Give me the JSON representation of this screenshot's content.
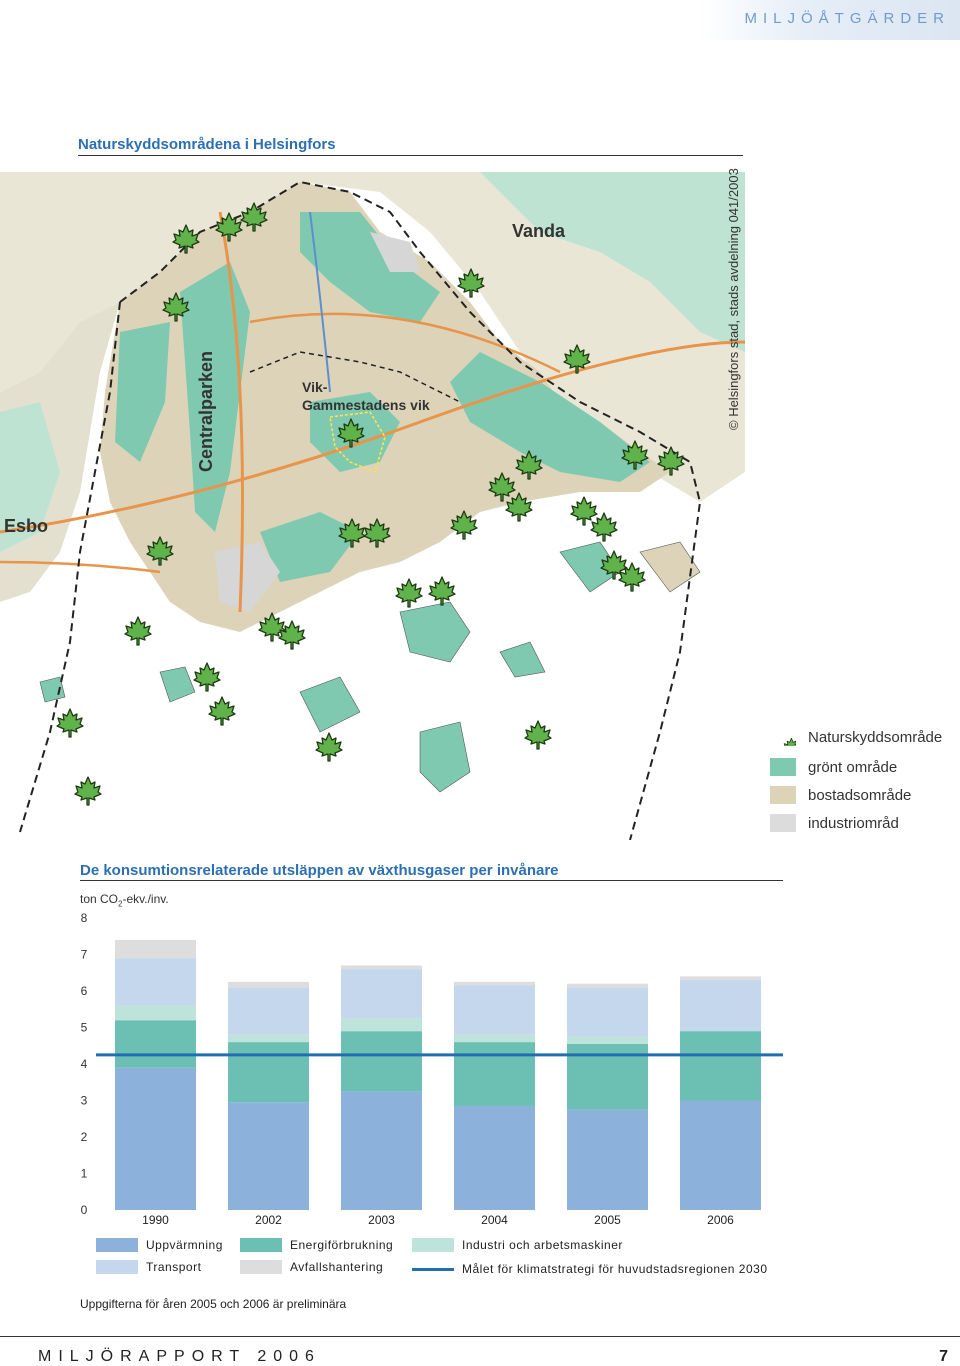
{
  "header": {
    "section": "MILJÖÅTGÄRDER"
  },
  "map": {
    "title": "Naturskyddsområdena i Helsingfors",
    "credit": "© Helsingfors stad, stads avdelning 041/2003",
    "labels": {
      "vanda": "Vanda",
      "centralparken": "Centralparken",
      "vik_line1": "Vik-",
      "vik_line2": "Gammestadens vik",
      "esbo": "Esbo"
    },
    "legend": [
      {
        "label": "Naturskyddsområde",
        "color": "#5fb34a",
        "icon": "maple-leaf-icon"
      },
      {
        "label": "grönt område",
        "color": "#7fc9b0"
      },
      {
        "label": "bostadsområde",
        "color": "#dcd3b8"
      },
      {
        "label": "industriområd",
        "color": "#dcdcdc"
      }
    ],
    "colors": {
      "water": "#ffffff",
      "green": "#7fc9b0",
      "residential": "#dcd3b8",
      "industrial": "#d6d6d6",
      "road": "#e8944a",
      "leaf": "#5fb34a"
    }
  },
  "chart_data": {
    "type": "bar",
    "title": "De konsumtionsrelaterade utsläppen av växthusgaser per invånare",
    "ylabel_main": "ton CO",
    "ylabel_sub": "2",
    "ylabel_rest": "-ekv./inv.",
    "ylim": [
      0,
      8
    ],
    "yticks": [
      "0",
      "1",
      "2",
      "3",
      "4",
      "5",
      "6",
      "7",
      "8"
    ],
    "categories": [
      "1990",
      "2002",
      "2003",
      "2004",
      "2005",
      "2006"
    ],
    "series": [
      {
        "name": "Uppvärmning",
        "color": "#8cb2dc",
        "values": [
          3.9,
          2.95,
          3.25,
          2.85,
          2.75,
          3.0
        ]
      },
      {
        "name": "Energiförbrukning",
        "color": "#6cc0b3",
        "values": [
          1.3,
          1.65,
          1.65,
          1.75,
          1.8,
          1.9
        ]
      },
      {
        "name": "Industri och arbetsmaskiner",
        "color": "#bde3db",
        "values": [
          0.4,
          0.2,
          0.35,
          0.2,
          0.2,
          0.0
        ]
      },
      {
        "name": "Transport",
        "color": "#c5d7ed",
        "values": [
          1.3,
          1.3,
          1.35,
          1.35,
          1.35,
          1.4
        ]
      },
      {
        "name": "Avfallshantering",
        "color": "#dddddd",
        "values": [
          0.5,
          0.15,
          0.1,
          0.1,
          0.1,
          0.1
        ]
      }
    ],
    "target": {
      "name": "Målet för klimatstrategi för huvudstadsregionen 2030",
      "value": 4.25,
      "color": "#1f6fb2"
    },
    "grid": false
  },
  "footnote": "Uppgifterna för åren 2005 och 2006 är preliminära",
  "footer": {
    "report": "MILJÖRAPPORT 2006",
    "page": "7"
  }
}
